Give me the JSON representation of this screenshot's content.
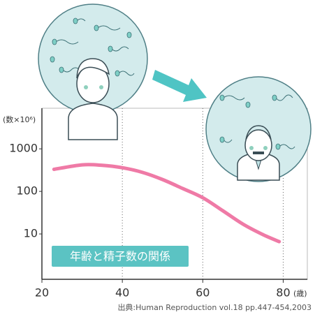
{
  "chart_data": {
    "type": "line",
    "log_scale_y": true,
    "y_unit": "(数×10⁶)",
    "x_unit": "(歳)",
    "annotation": "年齢と精子数の関係",
    "source": "出典:Human Reproduction vol.18 pp.447-454,2003",
    "x": [
      23,
      30,
      35,
      40,
      45,
      50,
      55,
      60,
      65,
      70,
      75,
      79
    ],
    "series": [
      {
        "name": "精子数",
        "color": "#ef7aa6",
        "values": [
          330,
          420,
          410,
          360,
          280,
          190,
          117,
          71,
          35,
          17,
          9.6,
          6.6
        ]
      }
    ],
    "xlim": [
      20,
      86
    ],
    "xticks": [
      20,
      40,
      60,
      80
    ],
    "ylim": [
      0.86,
      9000
    ],
    "yticks": [
      10,
      100,
      1000
    ],
    "grid_x": true
  }
}
